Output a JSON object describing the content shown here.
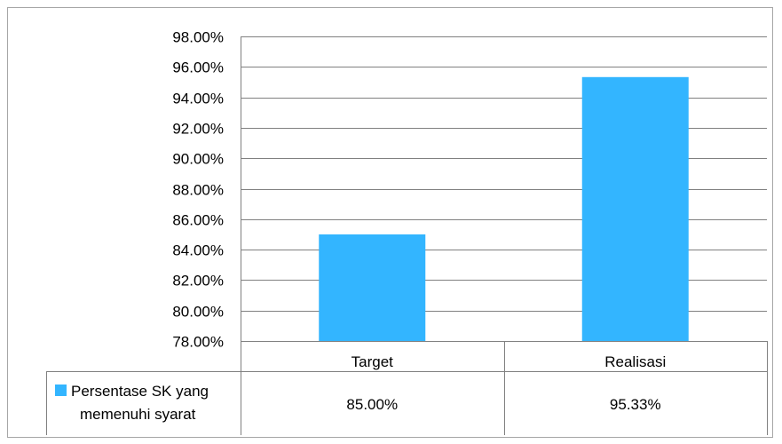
{
  "chart_data": {
    "type": "bar",
    "title": "",
    "xlabel": "",
    "ylabel": "",
    "categories": [
      "Target",
      "Realisasi"
    ],
    "series": [
      {
        "name": "Persentase SK yang memenuhi syarat",
        "name_lines": [
          "Persentase SK yang",
          "memenuhi syarat"
        ],
        "values": [
          85.0,
          95.33
        ],
        "value_labels": [
          "85.00%",
          "95.33%"
        ],
        "color": "#33b5ff"
      }
    ],
    "ylim": [
      78,
      98
    ],
    "y_ticks": [
      78,
      80,
      82,
      84,
      86,
      88,
      90,
      92,
      94,
      96,
      98
    ],
    "y_tick_labels": [
      "78.00%",
      "80.00%",
      "82.00%",
      "84.00%",
      "86.00%",
      "88.00%",
      "90.00%",
      "92.00%",
      "94.00%",
      "96.00%",
      "98.00%"
    ],
    "grid": true,
    "legend": "data-table-left",
    "gridline_color": "#808080",
    "border_color": "#a6a6a6"
  }
}
